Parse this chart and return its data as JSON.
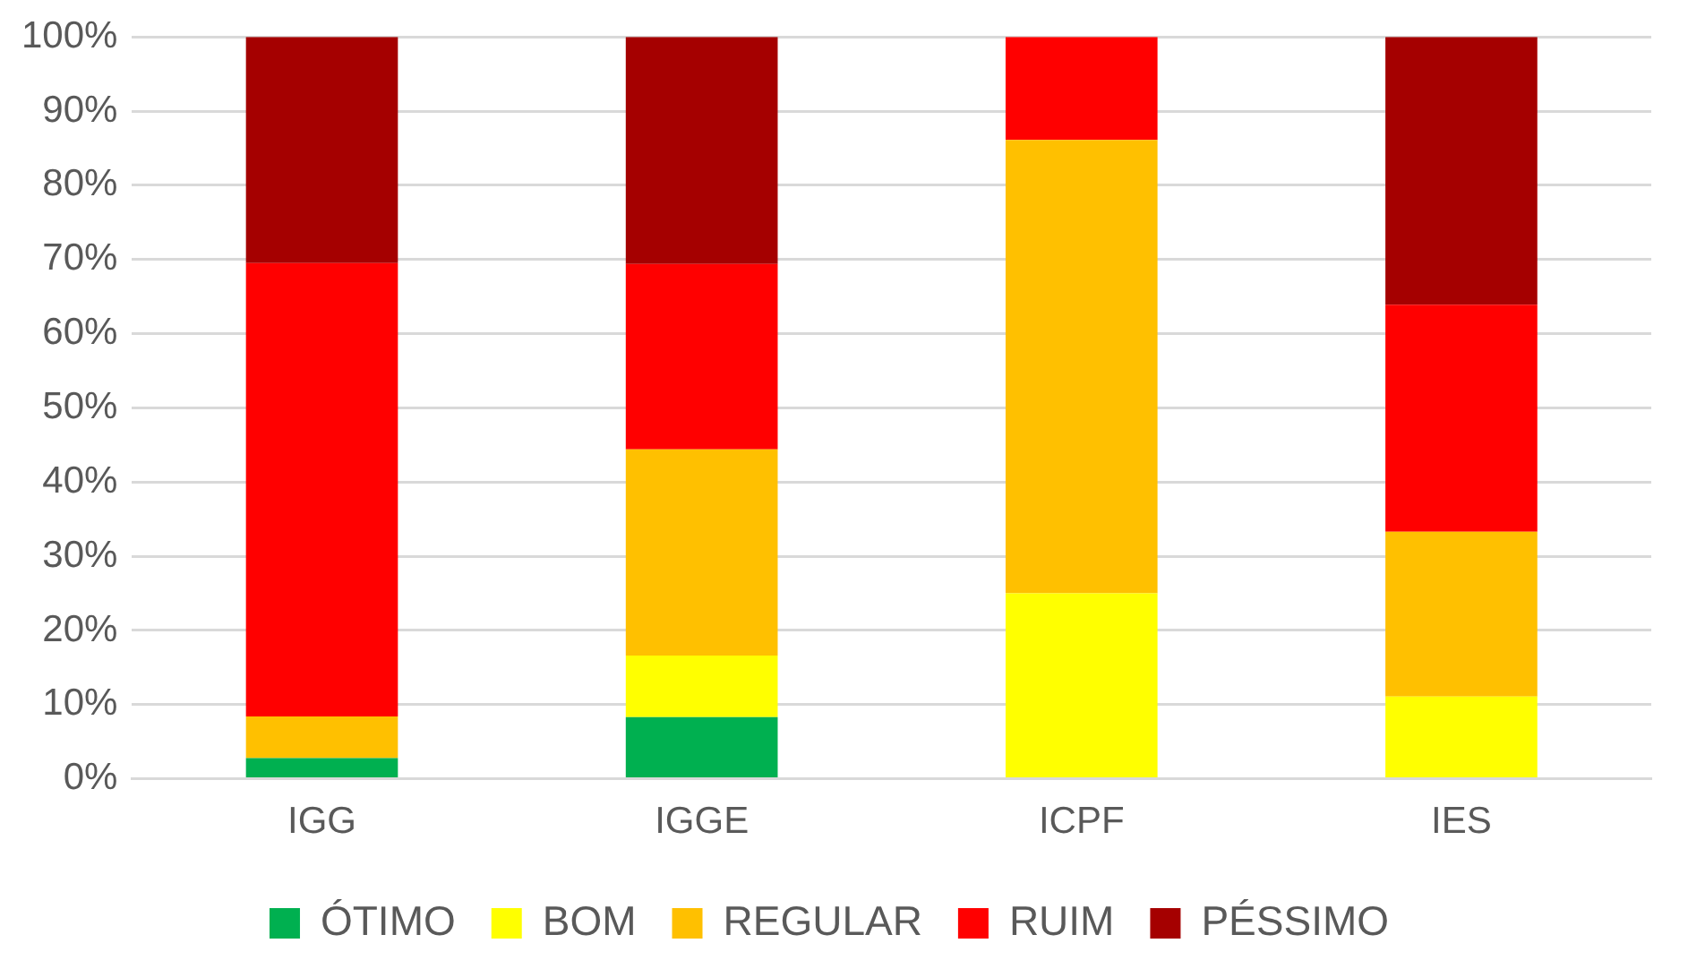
{
  "chart_data": {
    "type": "bar",
    "stacked": true,
    "categories": [
      "IGG",
      "IGGE",
      "ICPF",
      "IES"
    ],
    "series": [
      {
        "name": "ÓTIMO",
        "color": "#00b050",
        "values": [
          2.8,
          8.3,
          0,
          0
        ]
      },
      {
        "name": "BOM",
        "color": "#ffff00",
        "values": [
          0,
          8.3,
          25,
          11.1
        ]
      },
      {
        "name": "REGULAR",
        "color": "#ffc000",
        "values": [
          5.6,
          27.8,
          61.1,
          22.2
        ]
      },
      {
        "name": "RUIM",
        "color": "#ff0000",
        "values": [
          61.1,
          25,
          13.9,
          30.6
        ]
      },
      {
        "name": "PÉSSIMO",
        "color": "#a50000",
        "values": [
          30.5,
          30.6,
          0,
          36.1
        ]
      }
    ],
    "ylim": [
      0,
      100
    ],
    "yticks": [
      {
        "value": 0,
        "label": "0%"
      },
      {
        "value": 10,
        "label": "10%"
      },
      {
        "value": 20,
        "label": "20%"
      },
      {
        "value": 30,
        "label": "30%"
      },
      {
        "value": 40,
        "label": "40%"
      },
      {
        "value": 50,
        "label": "50%"
      },
      {
        "value": 60,
        "label": "60%"
      },
      {
        "value": 70,
        "label": "70%"
      },
      {
        "value": 80,
        "label": "80%"
      },
      {
        "value": 90,
        "label": "90%"
      },
      {
        "value": 100,
        "label": "100%"
      }
    ],
    "grid": "y",
    "legend": "bottom"
  }
}
